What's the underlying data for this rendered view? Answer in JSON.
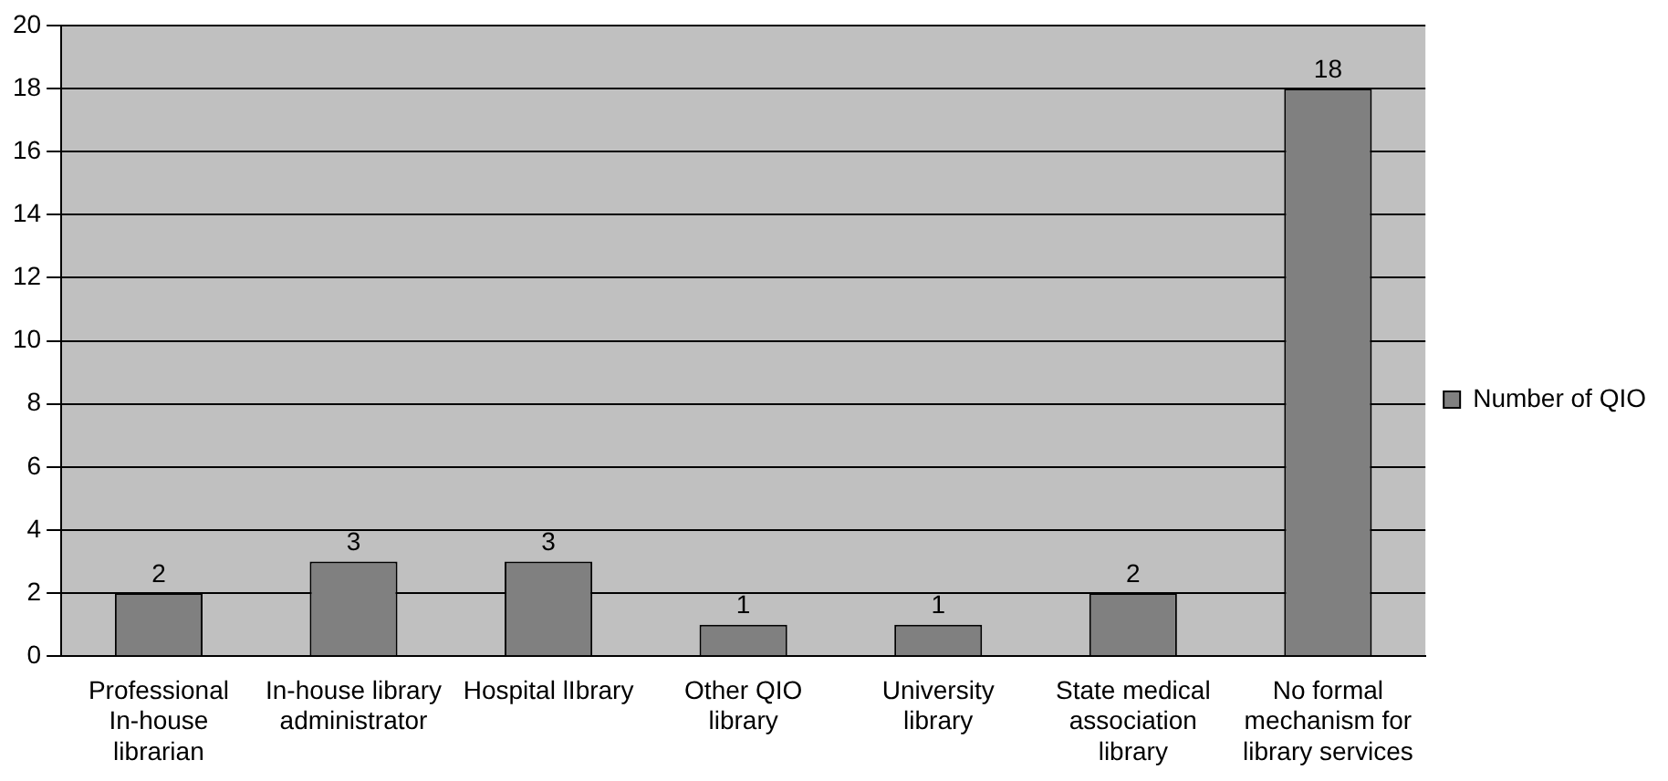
{
  "chart_data": {
    "type": "bar",
    "categories": [
      "Professional In-house librarian",
      "In-house library administrator",
      "Hospital lIbrary",
      "Other QIO library",
      "University library",
      "State medical association library",
      "No formal mechanism for library services"
    ],
    "series": [
      {
        "name": "Number of QIO",
        "color": "#808080",
        "values": [
          2,
          3,
          3,
          1,
          1,
          2,
          18
        ]
      }
    ],
    "ylim": [
      0,
      20
    ],
    "yticks": [
      0,
      2,
      4,
      6,
      8,
      10,
      12,
      14,
      16,
      18,
      20
    ],
    "grid": "y",
    "legend": "right",
    "data_labels": true
  }
}
